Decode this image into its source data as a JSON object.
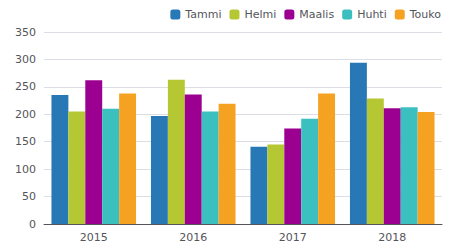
{
  "chart_data": {
    "type": "bar",
    "categories": [
      "2015",
      "2016",
      "2017",
      "2018"
    ],
    "series": [
      {
        "name": "Tammi",
        "color": "#2878b5",
        "values": [
          235,
          197,
          141,
          294
        ]
      },
      {
        "name": "Helmi",
        "color": "#b5c834",
        "values": [
          205,
          263,
          145,
          229
        ]
      },
      {
        "name": "Maalis",
        "color": "#9b0090",
        "values": [
          262,
          236,
          174,
          211
        ]
      },
      {
        "name": "Huhti",
        "color": "#3bbfbf",
        "values": [
          210,
          205,
          192,
          213
        ]
      },
      {
        "name": "Touko",
        "color": "#f5a223",
        "values": [
          238,
          219,
          238,
          204
        ]
      }
    ],
    "ylim": [
      0,
      350
    ],
    "yticks": [
      0,
      50,
      100,
      150,
      200,
      250,
      300,
      350
    ],
    "grid": true,
    "legend": "upper right"
  }
}
